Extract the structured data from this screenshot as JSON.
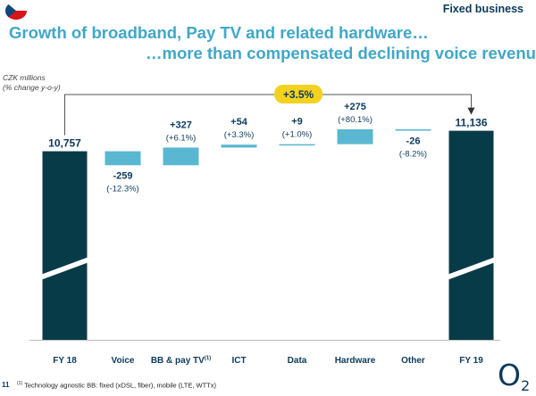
{
  "header": {
    "section": "Fixed business",
    "title_line1": "Growth of broadband, Pay TV and related hardware…",
    "title_line2": "…more than compensated declining voice revenue"
  },
  "unit_label_line1": "CZK millions",
  "unit_label_line2": "(% change y-o-y)",
  "growth_badge": "+3.5%",
  "footnote": {
    "page": "11",
    "marker": "(1)",
    "text": "Technology agnostic BB: fixed (xDSL, fiber), mobile (LTE, WTTx)"
  },
  "logo": {
    "letter": "O",
    "subscript": "2"
  },
  "colors": {
    "total_bar": "#083b48",
    "change_bar": "#5ab7d1",
    "title": "#40a7c8",
    "badge": "#f3d21f",
    "navy": "#0b3b5c"
  },
  "chart_data": {
    "type": "waterfall",
    "title": "",
    "ylabel": "CZK millions",
    "categories": [
      "FY 18",
      "Voice",
      "BB & pay TV",
      "ICT",
      "Data",
      "Hardware",
      "Other",
      "FY 19"
    ],
    "category_notes": [
      "",
      "",
      "(1)",
      "",
      "",
      "",
      "",
      ""
    ],
    "kinds": [
      "total",
      "change",
      "change",
      "change",
      "change",
      "change",
      "change",
      "total"
    ],
    "values": [
      10757,
      -259,
      327,
      54,
      9,
      275,
      -26,
      11136
    ],
    "value_labels": [
      "10,757",
      "-259",
      "+327",
      "+54",
      "+9",
      "+275",
      "-26",
      "11,136"
    ],
    "pct_labels": [
      "",
      "(-12.3%)",
      "(+6.1%)",
      "(+3.3%)",
      "(+1.0%)",
      "(+80.1%)",
      "(-8.2%)",
      ""
    ],
    "total_growth": "+3.5%",
    "axis_break": true
  }
}
